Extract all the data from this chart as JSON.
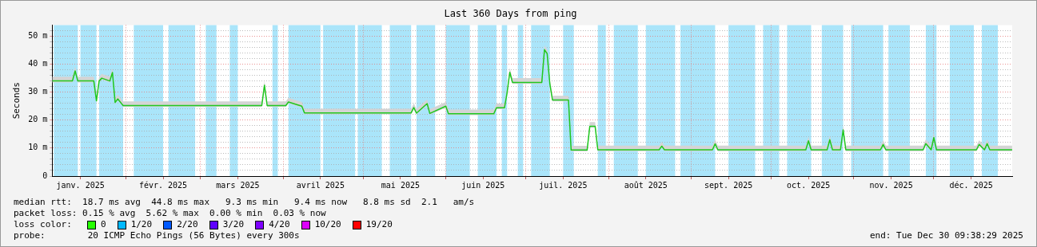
{
  "chart_data": {
    "type": "line",
    "title": "Last 360 Days from ping",
    "ylabel": "Seconds",
    "marker": "none",
    "grid": true,
    "legend": "bottom",
    "legend_title": "loss color:",
    "xlim": [
      "2025-01-04T09:38",
      "2025-12-30T09:38"
    ],
    "xticks": [
      {
        "value": "2025-01-15",
        "label": "janv. 2025"
      },
      {
        "value": "2025-02-01",
        "label": null
      },
      {
        "value": "2025-02-15",
        "label": "févr. 2025"
      },
      {
        "value": "2025-03-01",
        "label": null
      },
      {
        "value": "2025-03-15",
        "label": "mars 2025"
      },
      {
        "value": "2025-04-01",
        "label": null
      },
      {
        "value": "2025-04-15",
        "label": "avril 2025"
      },
      {
        "value": "2025-05-01",
        "label": null
      },
      {
        "value": "2025-05-15",
        "label": "mai 2025"
      },
      {
        "value": "2025-06-01",
        "label": null
      },
      {
        "value": "2025-06-15",
        "label": "juin 2025"
      },
      {
        "value": "2025-07-01",
        "label": null
      },
      {
        "value": "2025-07-15",
        "label": "juil. 2025"
      },
      {
        "value": "2025-08-01",
        "label": null
      },
      {
        "value": "2025-08-15",
        "label": "août 2025"
      },
      {
        "value": "2025-09-01",
        "label": null
      },
      {
        "value": "2025-09-15",
        "label": "sept. 2025"
      },
      {
        "value": "2025-10-01",
        "label": null
      },
      {
        "value": "2025-10-15",
        "label": "oct. 2025"
      },
      {
        "value": "2025-11-01",
        "label": null
      },
      {
        "value": "2025-11-15",
        "label": "nov. 2025"
      },
      {
        "value": "2025-12-01",
        "label": null
      },
      {
        "value": "2025-12-15",
        "label": "déc. 2025"
      }
    ],
    "ylim": [
      0,
      54
    ],
    "yticks": [
      0,
      {
        "value": 2,
        "label": null
      },
      {
        "value": 4,
        "label": null
      },
      {
        "value": 6,
        "label": null
      },
      {
        "value": 8,
        "label": null
      },
      {
        "value": 10,
        "label": "10 m"
      },
      {
        "value": 12,
        "label": null
      },
      {
        "value": 14,
        "label": null
      },
      {
        "value": 16,
        "label": null
      },
      {
        "value": 18,
        "label": null
      },
      {
        "value": 20,
        "label": "20 m"
      },
      {
        "value": 22,
        "label": null
      },
      {
        "value": 24,
        "label": null
      },
      {
        "value": 26,
        "label": null
      },
      {
        "value": 28,
        "label": null
      },
      {
        "value": 30,
        "label": "30 m"
      },
      {
        "value": 32,
        "label": null
      },
      {
        "value": 34,
        "label": null
      },
      {
        "value": 36,
        "label": null
      },
      {
        "value": 38,
        "label": null
      },
      {
        "value": 40,
        "label": "40 m"
      },
      {
        "value": 42,
        "label": null
      },
      {
        "value": 44,
        "label": null
      },
      {
        "value": 46,
        "label": null
      },
      {
        "value": 48,
        "label": null
      },
      {
        "value": 50,
        "label": "50 m"
      },
      {
        "value": 52,
        "label": null
      }
    ],
    "x": [
      "2025-01-04T10:00",
      "2025-01-12",
      "2025-01-13",
      "2025-01-14",
      "2025-01-20",
      "2025-01-21",
      "2025-01-22",
      "2025-01-23",
      "2025-01-26",
      "2025-01-27",
      "2025-01-28",
      "2025-01-29",
      "2025-01-31",
      "2025-03-24",
      "2025-03-25",
      "2025-03-26",
      "2025-04-02",
      "2025-04-03",
      "2025-04-08",
      "2025-04-09",
      "2025-05-19",
      "2025-05-20",
      "2025-05-21",
      "2025-05-25",
      "2025-05-26",
      "2025-06-01",
      "2025-06-02",
      "2025-06-19",
      "2025-06-20",
      "2025-06-23",
      "2025-06-24",
      "2025-06-25",
      "2025-06-26",
      "2025-07-07",
      "2025-07-08",
      "2025-07-09",
      "2025-07-10",
      "2025-07-11",
      "2025-07-17",
      "2025-07-18",
      "2025-07-24",
      "2025-07-25",
      "2025-07-27",
      "2025-07-28",
      "2025-08-20",
      "2025-08-21",
      "2025-08-22",
      "2025-09-09",
      "2025-09-10",
      "2025-09-11",
      "2025-10-14",
      "2025-10-15",
      "2025-10-16",
      "2025-10-22",
      "2025-10-23",
      "2025-10-24",
      "2025-10-27",
      "2025-10-28",
      "2025-10-29",
      "2025-11-11",
      "2025-11-12",
      "2025-11-13",
      "2025-11-27",
      "2025-11-28",
      "2025-11-30",
      "2025-12-01",
      "2025-12-02",
      "2025-12-17",
      "2025-12-18",
      "2025-12-20",
      "2025-12-21",
      "2025-12-22",
      "2025-12-30T09:00"
    ],
    "series": [
      {
        "color": "#1ec81e",
        "values": [
          34,
          34,
          37.6,
          34,
          34,
          26.9,
          34,
          35,
          34,
          37,
          26.3,
          27.6,
          25.2,
          25.2,
          32.5,
          25.2,
          25.2,
          26.5,
          25,
          22.6,
          22.6,
          24.5,
          22.5,
          25.9,
          22.4,
          25,
          22.3,
          22.3,
          24.4,
          24.4,
          29.9,
          37.1,
          33.5,
          33.5,
          45.2,
          43.8,
          33.1,
          27.2,
          27.2,
          9.3,
          9.3,
          17.8,
          17.8,
          9.4,
          9.4,
          10.7,
          9.4,
          9.4,
          11.5,
          9.4,
          9.4,
          12.6,
          9.4,
          9.4,
          13,
          9.4,
          9.4,
          16.5,
          9.4,
          9.4,
          11.3,
          9.4,
          9.4,
          11.6,
          9.4,
          13.8,
          9.4,
          9.4,
          11.3,
          9.4,
          11.6,
          9.4,
          9.4
        ],
        "lower": [
          33.5,
          33.5,
          37.1,
          33.5,
          33.5,
          26.4,
          33.5,
          34.5,
          33.5,
          36.5,
          25.8,
          27.1,
          24.7,
          24.7,
          32,
          24.7,
          24.7,
          26,
          24.5,
          22.1,
          22.1,
          24,
          22,
          25.4,
          21.9,
          24.5,
          21.8,
          21.8,
          23.9,
          23.9,
          29.4,
          36.6,
          33,
          33,
          44.7,
          43.3,
          32.6,
          26.7,
          26.7,
          8.8,
          8.8,
          17.3,
          17.3,
          8.9,
          8.9,
          10.2,
          8.9,
          8.9,
          11,
          8.9,
          8.9,
          12.1,
          8.9,
          8.9,
          12.5,
          8.9,
          8.9,
          16,
          8.9,
          8.9,
          10.8,
          8.9,
          8.9,
          11.1,
          8.9,
          13.3,
          8.9,
          8.9,
          10.8,
          8.9,
          11.1,
          8.9,
          8.9
        ],
        "upper": [
          35.5,
          35.5,
          39.1,
          35.5,
          35.5,
          28.4,
          35.5,
          36.5,
          35.5,
          38.5,
          27.8,
          29.1,
          26.7,
          26.7,
          34,
          26.7,
          26.7,
          28,
          26.5,
          24.1,
          24.1,
          26,
          24,
          27.4,
          23.9,
          26.5,
          23.8,
          23.8,
          25.9,
          25.9,
          31.4,
          38.6,
          35,
          35,
          46.7,
          45.3,
          34.6,
          28.7,
          28.7,
          10.8,
          10.8,
          19.3,
          19.3,
          10.9,
          10.9,
          12.2,
          10.9,
          10.9,
          13,
          10.9,
          10.9,
          14.1,
          10.9,
          10.9,
          14.5,
          10.9,
          10.9,
          18,
          10.9,
          10.9,
          12.8,
          10.9,
          10.9,
          13.1,
          10.9,
          15.3,
          10.9,
          10.9,
          12.8,
          10.9,
          13.1,
          10.9,
          10.9
        ]
      },
      {
        "name": "0",
        "color": "#26ff00",
        "values": [
          null,
          null,
          null,
          null,
          null,
          null,
          null,
          null,
          null,
          null,
          null,
          null,
          null,
          null,
          null,
          null,
          null,
          null,
          null,
          null,
          null,
          null,
          null,
          null,
          null,
          null,
          null,
          null,
          null,
          null,
          null,
          null,
          null,
          null,
          null,
          null,
          null,
          null,
          null,
          null,
          null,
          null,
          null,
          null,
          null,
          null,
          null,
          null,
          null,
          null,
          null,
          null,
          null,
          null,
          null,
          null,
          null,
          null,
          null,
          null,
          null,
          null,
          null,
          null,
          null,
          null,
          null,
          null,
          null,
          null,
          null,
          null,
          null
        ]
      },
      {
        "name": "1/20",
        "color": "#00b8ff",
        "values": [
          null,
          null,
          null,
          null,
          null,
          null,
          null,
          null,
          null,
          null,
          null,
          null,
          null,
          null,
          null,
          null,
          null,
          null,
          null,
          null,
          null,
          null,
          null,
          null,
          null,
          null,
          null,
          null,
          null,
          null,
          null,
          null,
          null,
          null,
          null,
          null,
          null,
          null,
          null,
          null,
          null,
          null,
          null,
          null,
          null,
          null,
          null,
          null,
          null,
          null,
          null,
          null,
          null,
          null,
          null,
          null,
          null,
          null,
          null,
          null,
          null,
          null,
          null,
          null,
          null,
          null,
          null,
          null,
          null,
          null,
          null,
          null,
          null
        ]
      },
      {
        "name": "2/20",
        "color": "#0059ff",
        "values": [
          null,
          null,
          null,
          null,
          null,
          null,
          null,
          null,
          null,
          null,
          null,
          null,
          null,
          null,
          null,
          null,
          null,
          null,
          null,
          null,
          null,
          null,
          null,
          null,
          null,
          null,
          null,
          null,
          null,
          null,
          null,
          null,
          null,
          null,
          null,
          null,
          null,
          null,
          null,
          null,
          null,
          null,
          null,
          null,
          null,
          null,
          null,
          null,
          null,
          null,
          null,
          null,
          null,
          null,
          null,
          null,
          null,
          null,
          null,
          null,
          null,
          null,
          null,
          null,
          null,
          null,
          null,
          null,
          null,
          null,
          null,
          null,
          null
        ]
      },
      {
        "name": "3/20",
        "color": "#5e00ff",
        "values": [
          null,
          null,
          null,
          null,
          null,
          null,
          null,
          null,
          null,
          null,
          null,
          null,
          null,
          null,
          null,
          null,
          null,
          null,
          null,
          null,
          null,
          null,
          null,
          null,
          null,
          null,
          null,
          null,
          null,
          null,
          null,
          null,
          null,
          null,
          null,
          null,
          null,
          null,
          null,
          null,
          null,
          null,
          null,
          null,
          null,
          null,
          null,
          null,
          null,
          null,
          null,
          null,
          null,
          null,
          null,
          null,
          null,
          null,
          null,
          null,
          null,
          null,
          null,
          null,
          null,
          null,
          null,
          null,
          null,
          null,
          null,
          null,
          null
        ]
      },
      {
        "name": "4/20",
        "color": "#7e00ff",
        "values": [
          null,
          null,
          null,
          null,
          null,
          null,
          null,
          null,
          null,
          null,
          null,
          null,
          null,
          null,
          null,
          null,
          null,
          null,
          null,
          null,
          null,
          null,
          null,
          null,
          null,
          null,
          null,
          null,
          null,
          null,
          null,
          null,
          null,
          null,
          null,
          null,
          null,
          null,
          null,
          null,
          null,
          null,
          null,
          null,
          null,
          null,
          null,
          null,
          null,
          null,
          null,
          null,
          null,
          null,
          null,
          null,
          null,
          null,
          null,
          null,
          null,
          null,
          null,
          null,
          null,
          null,
          null,
          null,
          null,
          null,
          null,
          null,
          null
        ]
      },
      {
        "name": "10/20",
        "color": "#dd00ff",
        "values": [
          null,
          null,
          null,
          null,
          null,
          null,
          null,
          null,
          null,
          null,
          null,
          null,
          null,
          null,
          null,
          null,
          null,
          null,
          null,
          null,
          null,
          null,
          null,
          null,
          null,
          null,
          null,
          null,
          null,
          null,
          null,
          null,
          null,
          null,
          null,
          null,
          null,
          null,
          null,
          null,
          null,
          null,
          null,
          null,
          null,
          null,
          null,
          null,
          null,
          null,
          null,
          null,
          null,
          null,
          null,
          null,
          null,
          null,
          null,
          null,
          null,
          null,
          null,
          null,
          null,
          null,
          null,
          null,
          null,
          null,
          null,
          null,
          null
        ]
      },
      {
        "name": "19/20",
        "color": "#ff0000",
        "values": [
          null,
          null,
          null,
          null,
          null,
          null,
          null,
          null,
          null,
          null,
          null,
          null,
          null,
          null,
          null,
          null,
          null,
          null,
          null,
          null,
          null,
          null,
          null,
          null,
          null,
          null,
          null,
          null,
          null,
          null,
          null,
          null,
          null,
          null,
          null,
          null,
          null,
          null,
          null,
          null,
          null,
          null,
          null,
          null,
          null,
          null,
          null,
          null,
          null,
          null,
          null,
          null,
          null,
          null,
          null,
          null,
          null,
          null,
          null,
          null,
          null,
          null,
          null,
          null,
          null,
          null,
          null,
          null,
          null,
          null,
          null,
          null,
          null
        ]
      }
    ],
    "bands": [
      {
        "axis": "x",
        "from": "2025-01-05",
        "to": "2025-01-14",
        "color": "#aae5fa"
      },
      {
        "axis": "x",
        "from": "2025-01-15",
        "to": "2025-01-21",
        "color": "#aae5fa"
      },
      {
        "axis": "x",
        "from": "2025-01-22",
        "to": "2025-01-31",
        "color": "#aae5fa"
      },
      {
        "axis": "x",
        "from": "2025-02-04",
        "to": "2025-02-15",
        "color": "#aae5fa"
      },
      {
        "axis": "x",
        "from": "2025-02-17",
        "to": "2025-02-27",
        "color": "#aae5fa"
      },
      {
        "axis": "x",
        "from": "2025-03-03",
        "to": "2025-03-07",
        "color": "#aae5fa"
      },
      {
        "axis": "x",
        "from": "2025-03-12",
        "to": "2025-03-15",
        "color": "#aae5fa"
      },
      {
        "axis": "x",
        "from": "2025-03-28",
        "to": "2025-03-30",
        "color": "#aae5fa"
      },
      {
        "axis": "x",
        "from": "2025-04-03",
        "to": "2025-04-15",
        "color": "#aae5fa"
      },
      {
        "axis": "x",
        "from": "2025-04-16",
        "to": "2025-04-28",
        "color": "#aae5fa"
      },
      {
        "axis": "x",
        "from": "2025-04-29",
        "to": "2025-05-08",
        "color": "#aae5fa"
      },
      {
        "axis": "x",
        "from": "2025-05-11",
        "to": "2025-05-19",
        "color": "#aae5fa"
      },
      {
        "axis": "x",
        "from": "2025-05-21",
        "to": "2025-05-28",
        "color": "#aae5fa"
      },
      {
        "axis": "x",
        "from": "2025-06-01",
        "to": "2025-06-10",
        "color": "#aae5fa"
      },
      {
        "axis": "x",
        "from": "2025-06-13",
        "to": "2025-06-20",
        "color": "#aae5fa"
      },
      {
        "axis": "x",
        "from": "2025-06-22",
        "to": "2025-06-24",
        "color": "#aae5fa"
      },
      {
        "axis": "x",
        "from": "2025-06-28",
        "to": "2025-06-30",
        "color": "#aae5fa"
      },
      {
        "axis": "x",
        "from": "2025-07-03",
        "to": "2025-07-10",
        "color": "#aae5fa"
      },
      {
        "axis": "x",
        "from": "2025-07-15",
        "to": "2025-07-19",
        "color": "#aae5fa"
      },
      {
        "axis": "x",
        "from": "2025-07-28",
        "to": "2025-07-31",
        "color": "#aae5fa"
      },
      {
        "axis": "x",
        "from": "2025-08-03",
        "to": "2025-08-12",
        "color": "#aae5fa"
      },
      {
        "axis": "x",
        "from": "2025-08-15",
        "to": "2025-08-26",
        "color": "#aae5fa"
      },
      {
        "axis": "x",
        "from": "2025-08-28",
        "to": "2025-09-10",
        "color": "#aae5fa"
      },
      {
        "axis": "x",
        "from": "2025-09-15",
        "to": "2025-09-25",
        "color": "#aae5fa"
      },
      {
        "axis": "x",
        "from": "2025-09-28",
        "to": "2025-10-04",
        "color": "#aae5fa"
      },
      {
        "axis": "x",
        "from": "2025-10-07",
        "to": "2025-10-16",
        "color": "#aae5fa"
      },
      {
        "axis": "x",
        "from": "2025-10-20",
        "to": "2025-10-28",
        "color": "#aae5fa"
      },
      {
        "axis": "x",
        "from": "2025-10-31",
        "to": "2025-11-12",
        "color": "#aae5fa"
      },
      {
        "axis": "x",
        "from": "2025-11-14",
        "to": "2025-11-22",
        "color": "#aae5fa"
      },
      {
        "axis": "x",
        "from": "2025-11-28",
        "to": "2025-12-02",
        "color": "#aae5fa"
      },
      {
        "axis": "x",
        "from": "2025-12-07",
        "to": "2025-12-16",
        "color": "#aae5fa"
      },
      {
        "axis": "x",
        "from": "2025-12-19",
        "to": "2025-12-25",
        "color": "#aae5fa"
      }
    ],
    "annotations": [
      "median rtt:  18.7 ms avg  44.8 ms max   9.3 ms min   9.4 ms now   8.8 ms sd  2.1   am/s",
      "packet loss: 0.15 % avg  5.62 % max  0.00 % min  0.03 % now",
      "probe:        20 ICMP Echo Pings (56 Bytes) every 300s",
      "end: Tue Dec 30 09:38:29 2025"
    ]
  }
}
